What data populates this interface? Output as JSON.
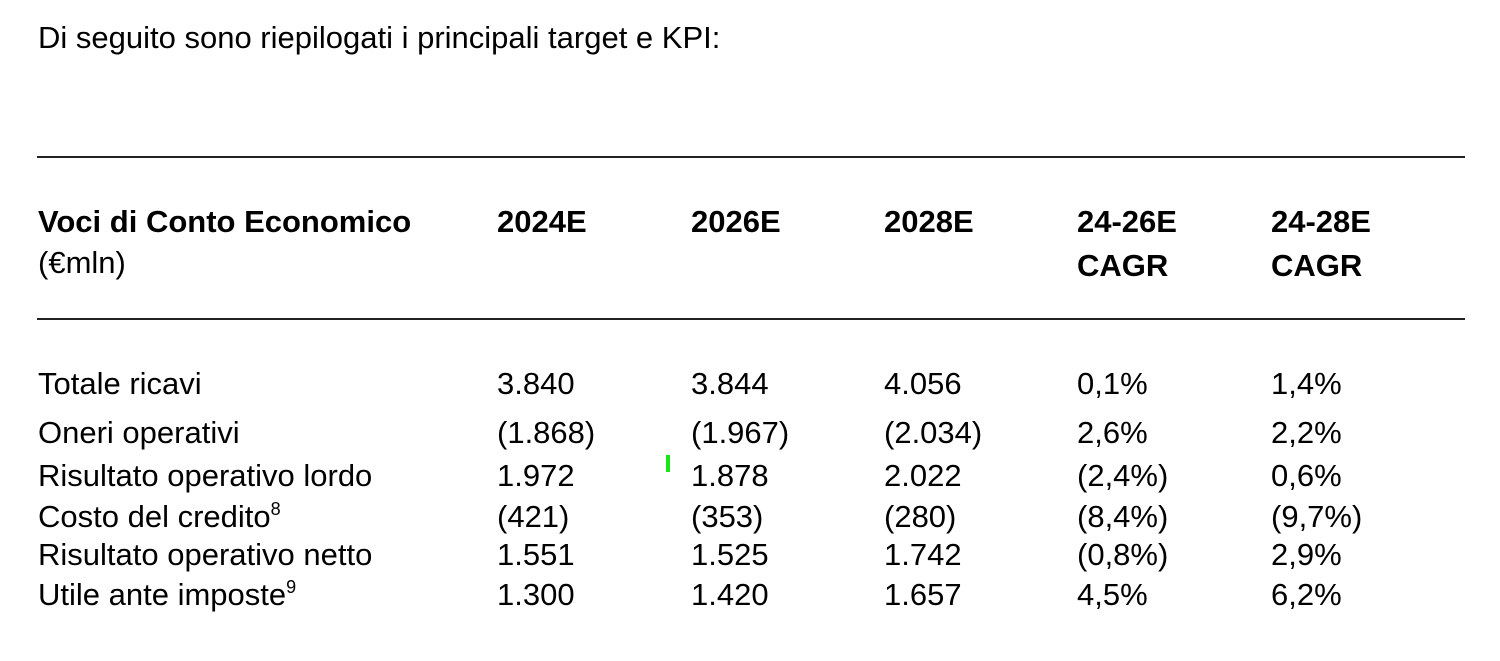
{
  "intro": "Di seguito sono riepilogati i principali target e KPI:",
  "table": {
    "header": {
      "label_line1": "Voci di Conto Economico",
      "label_line2": "(€mln)",
      "c1": "2024E",
      "c2": "2026E",
      "c3": "2028E",
      "c4_line1": "24-26E",
      "c4_line2": "CAGR",
      "c5_line1": "24-28E",
      "c5_line2": "CAGR"
    },
    "rows": [
      {
        "label": "Totale ricavi",
        "note": "",
        "v2024": "3.840",
        "v2026": "3.844",
        "v2028": "4.056",
        "cagr_24_26": "0,1%",
        "cagr_24_28": "1,4%"
      },
      {
        "label": "Oneri operativi",
        "note": "",
        "v2024": "(1.868)",
        "v2026": "(1.967)",
        "v2028": "(2.034)",
        "cagr_24_26": "2,6%",
        "cagr_24_28": "2,2%"
      },
      {
        "label": "Risultato operativo lordo",
        "note": "",
        "v2024": "1.972",
        "v2026": "1.878",
        "v2028": "2.022",
        "cagr_24_26": "(2,4%)",
        "cagr_24_28": "0,6%"
      },
      {
        "label": "Costo del credito",
        "note": "8",
        "v2024": "(421)",
        "v2026": "(353)",
        "v2028": "(280)",
        "cagr_24_26": "(8,4%)",
        "cagr_24_28": "(9,7%)"
      },
      {
        "label": "Risultato operativo netto",
        "note": "",
        "v2024": "1.551",
        "v2026": "1.525",
        "v2028": "1.742",
        "cagr_24_26": "(0,8%)",
        "cagr_24_28": "2,9%"
      },
      {
        "label": "Utile ante imposte",
        "note": "9",
        "v2024": "1.300",
        "v2026": "1.420",
        "v2028": "1.657",
        "cagr_24_26": "4,5%",
        "cagr_24_28": "6,2%"
      }
    ]
  },
  "colors": {
    "text": "#000000",
    "rule": "#222222",
    "marker": "#19e619"
  }
}
